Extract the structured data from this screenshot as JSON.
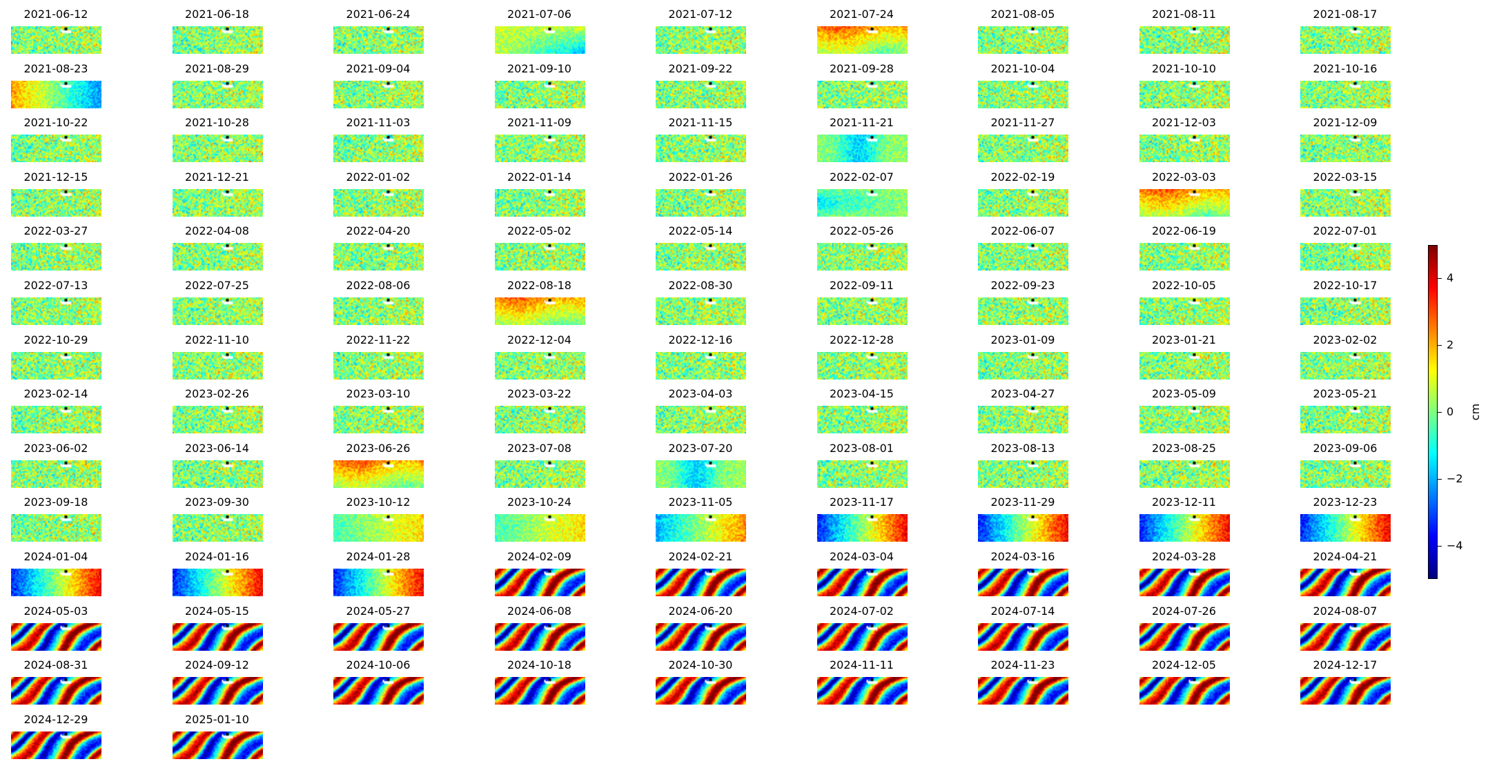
{
  "chart_data": {
    "type": "heatmap",
    "title": "",
    "colormap": "jet",
    "panels": [
      "2021-06-12",
      "2021-06-18",
      "2021-06-24",
      "2021-07-06",
      "2021-07-12",
      "2021-07-24",
      "2021-08-05",
      "2021-08-11",
      "2021-08-17",
      "2021-08-23",
      "2021-08-29",
      "2021-09-04",
      "2021-09-10",
      "2021-09-22",
      "2021-09-28",
      "2021-10-04",
      "2021-10-10",
      "2021-10-16",
      "2021-10-22",
      "2021-10-28",
      "2021-11-03",
      "2021-11-09",
      "2021-11-15",
      "2021-11-21",
      "2021-11-27",
      "2021-12-03",
      "2021-12-09",
      "2021-12-15",
      "2021-12-21",
      "2022-01-02",
      "2022-01-14",
      "2022-01-26",
      "2022-02-07",
      "2022-02-19",
      "2022-03-03",
      "2022-03-15",
      "2022-03-27",
      "2022-04-08",
      "2022-04-20",
      "2022-05-02",
      "2022-05-14",
      "2022-05-26",
      "2022-06-07",
      "2022-06-19",
      "2022-07-01",
      "2022-07-13",
      "2022-07-25",
      "2022-08-06",
      "2022-08-18",
      "2022-08-30",
      "2022-09-11",
      "2022-09-23",
      "2022-10-05",
      "2022-10-17",
      "2022-10-29",
      "2022-11-10",
      "2022-11-22",
      "2022-12-04",
      "2022-12-16",
      "2022-12-28",
      "2023-01-09",
      "2023-01-21",
      "2023-02-02",
      "2023-02-14",
      "2023-02-26",
      "2023-03-10",
      "2023-03-22",
      "2023-04-03",
      "2023-04-15",
      "2023-04-27",
      "2023-05-09",
      "2023-05-21",
      "2023-06-02",
      "2023-06-14",
      "2023-06-26",
      "2023-07-08",
      "2023-07-20",
      "2023-08-01",
      "2023-08-13",
      "2023-08-25",
      "2023-09-06",
      "2023-09-18",
      "2023-09-30",
      "2023-10-12",
      "2023-10-24",
      "2023-11-05",
      "2023-11-17",
      "2023-11-29",
      "2023-12-11",
      "2023-12-23",
      "2024-01-04",
      "2024-01-16",
      "2024-01-28",
      "2024-02-09",
      "2024-02-21",
      "2024-03-04",
      "2024-03-16",
      "2024-03-28",
      "2024-04-21",
      "2024-05-03",
      "2024-05-15",
      "2024-05-27",
      "2024-06-08",
      "2024-06-20",
      "2024-07-02",
      "2024-07-14",
      "2024-07-26",
      "2024-08-07",
      "2024-08-31",
      "2024-09-12",
      "2024-10-06",
      "2024-10-18",
      "2024-10-30",
      "2024-11-11",
      "2024-11-23",
      "2024-12-05",
      "2024-12-17",
      "2024-12-29",
      "2025-01-10"
    ],
    "panel_pattern": [
      "flat",
      "flat",
      "flat",
      "tilt-lowright",
      "flat",
      "warm-top",
      "flat",
      "flat",
      "flat",
      "tilt-right",
      "flat",
      "flat",
      "flat",
      "flat",
      "flat",
      "flat",
      "flat",
      "flat",
      "flat",
      "flat",
      "flat",
      "flat",
      "flat",
      "cool-center",
      "flat",
      "flat",
      "flat",
      "flat",
      "flat",
      "flat",
      "flat",
      "flat",
      "cool-left",
      "flat",
      "warm-top",
      "flat",
      "flat",
      "flat",
      "flat",
      "flat",
      "flat",
      "flat",
      "flat",
      "flat",
      "flat",
      "flat",
      "flat",
      "flat",
      "warm-top",
      "flat",
      "flat",
      "flat",
      "flat",
      "flat",
      "flat",
      "flat",
      "flat",
      "flat",
      "flat",
      "flat",
      "flat",
      "flat",
      "flat",
      "flat",
      "flat",
      "flat",
      "flat",
      "flat",
      "flat",
      "flat",
      "flat",
      "flat",
      "flat",
      "flat",
      "warm-top",
      "flat",
      "cool-center",
      "flat",
      "flat",
      "flat",
      "flat",
      "flat",
      "flat",
      "ramp-weak",
      "ramp-weak",
      "ramp-mid",
      "ramp-strong",
      "ramp-strong",
      "ramp-strong",
      "ramp-strong",
      "ramp-strong",
      "ramp-strong",
      "ramp-strong",
      "fringes",
      "fringes",
      "fringes",
      "fringes",
      "fringes",
      "fringes",
      "fringes",
      "fringes",
      "fringes",
      "fringes",
      "fringes",
      "fringes",
      "fringes",
      "fringes",
      "fringes",
      "fringes",
      "fringes",
      "fringes",
      "fringes",
      "fringes",
      "fringes",
      "fringes",
      "fringes",
      "fringes",
      "fringes",
      "fringes"
    ],
    "colorbar": {
      "label": "cm",
      "range": [
        -5,
        5
      ],
      "ticks": [
        4,
        2,
        0,
        -2,
        -4
      ],
      "tick_labels": [
        "4",
        "2",
        "0",
        "−2",
        "−4"
      ]
    }
  }
}
